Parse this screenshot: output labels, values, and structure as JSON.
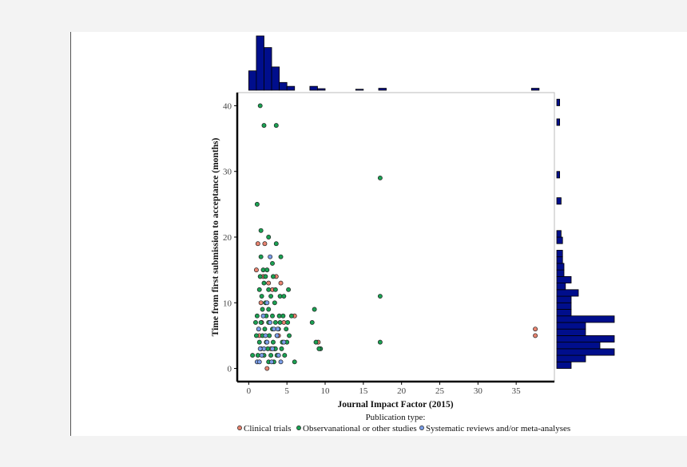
{
  "chart_data": {
    "type": "scatter",
    "xlabel": "Journal Impact Factor (2015)",
    "ylabel": "Time from first submission to acceptance (months)",
    "xlim": [
      -1.5,
      40
    ],
    "ylim": [
      -2,
      42
    ],
    "x_ticks": [
      0,
      5,
      10,
      15,
      20,
      25,
      30,
      35
    ],
    "y_ticks": [
      0,
      10,
      20,
      30,
      40
    ],
    "legend": {
      "title": "Publication type:",
      "placement": "bottom",
      "entries": [
        "Clinical trials",
        "Observanational or other studies",
        "Systematic reviews and/or meta-analyses"
      ]
    },
    "colors": {
      "Clinical trials": "#e8836f",
      "Observanational or other studies": "#1aa152",
      "Systematic reviews and/or meta-analyses": "#7a9ee8",
      "histogram": "#000e8c"
    },
    "series": [
      {
        "name": "Clinical trials",
        "points": [
          [
            1.2,
            19
          ],
          [
            1.0,
            15
          ],
          [
            1.6,
            10
          ],
          [
            1.9,
            14
          ],
          [
            2.1,
            19
          ],
          [
            2.6,
            13
          ],
          [
            3.1,
            12
          ],
          [
            3.6,
            14
          ],
          [
            4.2,
            13
          ],
          [
            4.6,
            7
          ],
          [
            3.9,
            5
          ],
          [
            2.4,
            0
          ],
          [
            6.0,
            8
          ],
          [
            9.1,
            4
          ],
          [
            37.5,
            6
          ],
          [
            37.5,
            5
          ],
          [
            2.9,
            3
          ],
          [
            1.4,
            5
          ],
          [
            1.7,
            7
          ],
          [
            3.4,
            3
          ]
        ]
      },
      {
        "name": "Observanational or other studies",
        "points": [
          [
            1.5,
            40
          ],
          [
            2.0,
            37
          ],
          [
            3.6,
            37
          ],
          [
            17.2,
            29
          ],
          [
            1.1,
            25
          ],
          [
            1.6,
            21
          ],
          [
            2.6,
            20
          ],
          [
            3.6,
            19
          ],
          [
            4.2,
            17
          ],
          [
            1.6,
            17
          ],
          [
            3.1,
            16
          ],
          [
            1.9,
            15
          ],
          [
            2.4,
            15
          ],
          [
            3.2,
            14
          ],
          [
            2.2,
            14
          ],
          [
            1.5,
            14
          ],
          [
            2.0,
            13
          ],
          [
            3.5,
            12
          ],
          [
            1.4,
            12
          ],
          [
            2.6,
            12
          ],
          [
            5.2,
            12
          ],
          [
            1.7,
            11
          ],
          [
            2.9,
            11
          ],
          [
            4.1,
            11
          ],
          [
            4.6,
            11
          ],
          [
            17.2,
            11
          ],
          [
            2.2,
            10
          ],
          [
            3.4,
            10
          ],
          [
            2.6,
            9
          ],
          [
            1.8,
            9
          ],
          [
            8.6,
            9
          ],
          [
            1.1,
            8
          ],
          [
            2.3,
            8
          ],
          [
            3.1,
            8
          ],
          [
            4.0,
            8
          ],
          [
            4.5,
            8
          ],
          [
            5.6,
            8
          ],
          [
            0.9,
            7
          ],
          [
            1.6,
            7
          ],
          [
            2.6,
            7
          ],
          [
            3.5,
            7
          ],
          [
            4.1,
            7
          ],
          [
            5.1,
            7
          ],
          [
            8.3,
            7
          ],
          [
            1.3,
            6
          ],
          [
            2.1,
            6
          ],
          [
            3.1,
            6
          ],
          [
            3.9,
            6
          ],
          [
            4.9,
            6
          ],
          [
            1.0,
            5
          ],
          [
            1.8,
            5
          ],
          [
            2.7,
            5
          ],
          [
            3.7,
            5
          ],
          [
            5.3,
            5
          ],
          [
            1.4,
            4
          ],
          [
            2.3,
            4
          ],
          [
            3.2,
            4
          ],
          [
            4.4,
            4
          ],
          [
            5.0,
            4
          ],
          [
            8.8,
            4
          ],
          [
            17.2,
            4
          ],
          [
            1.6,
            3
          ],
          [
            2.5,
            3
          ],
          [
            3.5,
            3
          ],
          [
            4.3,
            3
          ],
          [
            9.4,
            3
          ],
          [
            9.2,
            3
          ],
          [
            0.5,
            2
          ],
          [
            1.2,
            2
          ],
          [
            2.0,
            2
          ],
          [
            2.9,
            2
          ],
          [
            3.7,
            2
          ],
          [
            4.7,
            2
          ],
          [
            2.6,
            1
          ],
          [
            3.3,
            1
          ],
          [
            6.0,
            1
          ]
        ]
      },
      {
        "name": "Systematic reviews and/or meta-analyses",
        "points": [
          [
            2.8,
            17
          ],
          [
            2.4,
            10
          ],
          [
            1.9,
            8
          ],
          [
            3.3,
            6
          ],
          [
            3.8,
            6
          ],
          [
            1.3,
            6
          ],
          [
            2.8,
            7
          ],
          [
            3.7,
            5
          ],
          [
            2.4,
            4
          ],
          [
            4.6,
            4
          ],
          [
            2.0,
            3
          ],
          [
            3.1,
            3
          ],
          [
            1.7,
            2
          ],
          [
            3.9,
            2
          ],
          [
            1.1,
            1
          ],
          [
            1.4,
            1
          ],
          [
            3.0,
            1
          ],
          [
            4.2,
            1
          ],
          [
            2.2,
            5
          ],
          [
            1.5,
            3
          ]
        ]
      }
    ],
    "hist_x": {
      "bins": [
        [
          0,
          1,
          5
        ],
        [
          1,
          2,
          14
        ],
        [
          2,
          3,
          11
        ],
        [
          3,
          4,
          6
        ],
        [
          4,
          5,
          2
        ],
        [
          5,
          6,
          1
        ],
        [
          8,
          9,
          1
        ],
        [
          9,
          10,
          0.4
        ],
        [
          14,
          15,
          0.25
        ],
        [
          17,
          18,
          0.5
        ],
        [
          37,
          38,
          0.5
        ]
      ]
    },
    "hist_y": {
      "bins": [
        [
          0,
          1,
          1
        ],
        [
          1,
          2,
          2
        ],
        [
          2,
          3,
          4
        ],
        [
          3,
          4,
          3
        ],
        [
          4,
          5,
          4
        ],
        [
          5,
          6,
          2
        ],
        [
          6,
          7,
          2
        ],
        [
          7,
          8,
          4
        ],
        [
          8,
          9,
          1
        ],
        [
          9,
          10,
          1
        ],
        [
          10,
          11,
          1
        ],
        [
          11,
          12,
          1.5
        ],
        [
          12,
          13,
          0.6
        ],
        [
          13,
          14,
          1
        ],
        [
          14,
          15,
          0.5
        ],
        [
          15,
          16,
          0.5
        ],
        [
          16,
          17,
          0.4
        ],
        [
          17,
          18,
          0.4
        ],
        [
          19,
          20,
          0.4
        ],
        [
          20,
          21,
          0.3
        ],
        [
          25,
          26,
          0.3
        ],
        [
          29,
          30,
          0.2
        ],
        [
          37,
          38,
          0.2
        ],
        [
          40,
          41,
          0.2
        ]
      ]
    }
  }
}
